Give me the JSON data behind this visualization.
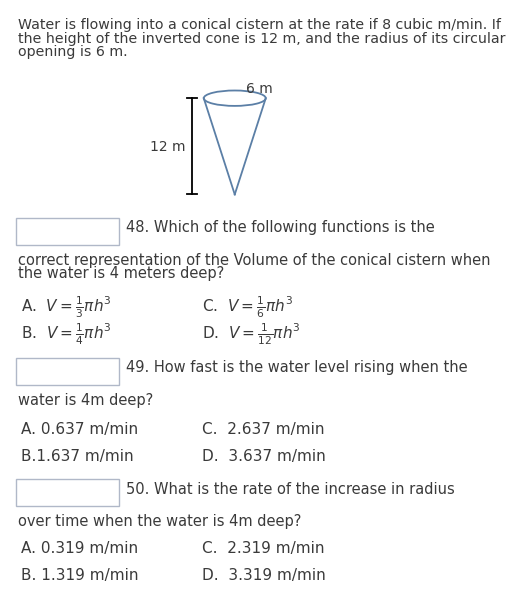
{
  "bg_color": "#ffffff",
  "text_color": "#3a3a3a",
  "cone_color": "#5b7fa6",
  "intro_line1": "Water is flowing into a conical cistern at the rate if 8 cubic m/min. If",
  "intro_line2": "the height of the inverted cone is 12 m, and the radius of its circular",
  "intro_line3": "opening is 6 m.",
  "cone_label_top": "6 m",
  "cone_label_left": "12 m",
  "q48_label": "48. Which of the following functions is the",
  "q48_cont1": "correct representation of the Volume of the conical cistern when",
  "q48_cont2": "the water is 4 meters deep?",
  "q48_A": "A.  $V = \\frac{1}{3}\\pi h^3$",
  "q48_C": "C.  $V = \\frac{1}{6}\\pi h^3$",
  "q48_B": "B.  $V = \\frac{1}{4}\\pi h^3$",
  "q48_D": "D.  $V = \\frac{1}{12}\\pi h^3$",
  "q49_label": "49. How fast is the water level rising when the",
  "q49_cont": "water is 4m deep?",
  "q49_A": "A. 0.637 m/min",
  "q49_C": "C.  2.637 m/min",
  "q49_B": "B.1.637 m/min",
  "q49_D": "D.  3.637 m/min",
  "q50_label": "50. What is the rate of the increase in radius",
  "q50_cont": "over time when the water is 4m deep?",
  "q50_A": "A. 0.319 m/min",
  "q50_C": "C.  2.319 m/min",
  "q50_B": "B. 1.319 m/min",
  "q50_D": "D.  3.319 m/min"
}
